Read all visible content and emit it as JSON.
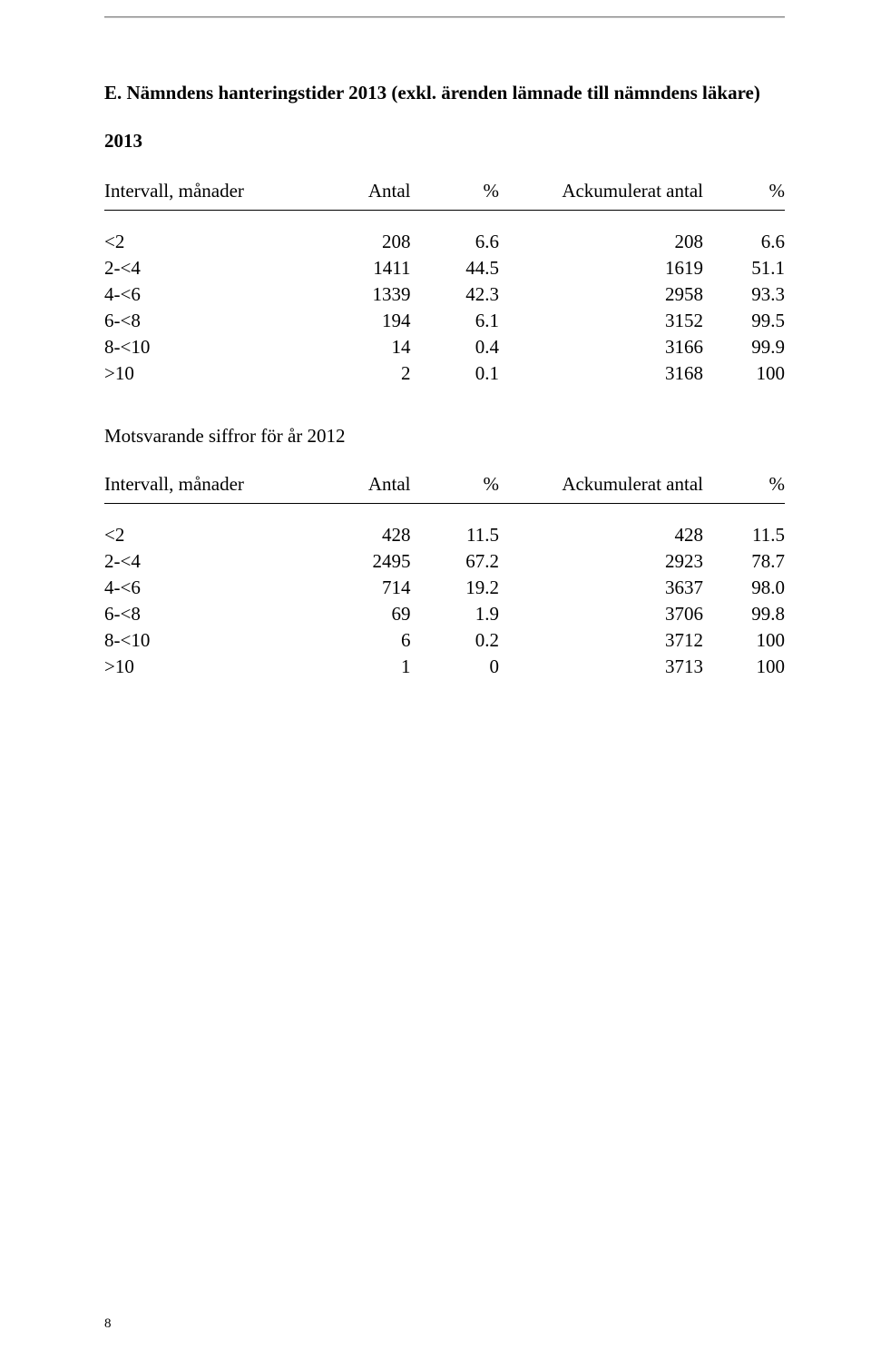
{
  "title": "E. Nämndens hanteringstider 2013 (exkl. ärenden lämnade till nämndens läkare)",
  "year_label": "2013",
  "columns": {
    "interval": "Intervall, månader",
    "antal": "Antal",
    "pct": "%",
    "ack": "Ackumulerat antal",
    "pct2": "%"
  },
  "table1": {
    "rows": [
      {
        "interval": "<2",
        "antal": "208",
        "pct": "6.6",
        "ack": "208",
        "pct2": "6.6"
      },
      {
        "interval": "2-<4",
        "antal": "1411",
        "pct": "44.5",
        "ack": "1619",
        "pct2": "51.1"
      },
      {
        "interval": "4-<6",
        "antal": "1339",
        "pct": "42.3",
        "ack": "2958",
        "pct2": "93.3"
      },
      {
        "interval": "6-<8",
        "antal": "194",
        "pct": "6.1",
        "ack": "3152",
        "pct2": "99.5"
      },
      {
        "interval": "8-<10",
        "antal": "14",
        "pct": "0.4",
        "ack": "3166",
        "pct2": "99.9"
      },
      {
        "interval": ">10",
        "antal": "2",
        "pct": "0.1",
        "ack": "3168",
        "pct2": "100"
      }
    ]
  },
  "subhead": "Motsvarande siffror för år 2012",
  "table2": {
    "rows": [
      {
        "interval": "<2",
        "antal": "428",
        "pct": "11.5",
        "ack": "428",
        "pct2": "11.5"
      },
      {
        "interval": "2-<4",
        "antal": "2495",
        "pct": "67.2",
        "ack": "2923",
        "pct2": "78.7"
      },
      {
        "interval": "4-<6",
        "antal": "714",
        "pct": "19.2",
        "ack": "3637",
        "pct2": "98.0"
      },
      {
        "interval": "6-<8",
        "antal": "69",
        "pct": "1.9",
        "ack": "3706",
        "pct2": "99.8"
      },
      {
        "interval": "8-<10",
        "antal": "6",
        "pct": "0.2",
        "ack": "3712",
        "pct2": "100"
      },
      {
        "interval": ">10",
        "antal": "1",
        "pct": "0",
        "ack": "3713",
        "pct2": "100"
      }
    ]
  },
  "page_number": "8"
}
